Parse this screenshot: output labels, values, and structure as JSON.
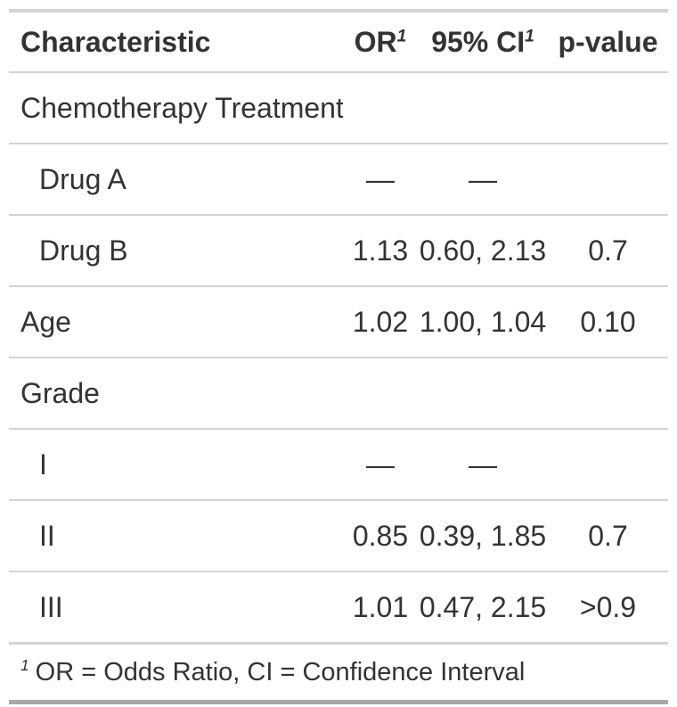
{
  "table": {
    "columns": [
      {
        "label": "Characteristic",
        "sup": ""
      },
      {
        "label": "OR",
        "sup": "1"
      },
      {
        "label": "95% CI",
        "sup": "1"
      },
      {
        "label": "p-value",
        "sup": ""
      }
    ],
    "rows": [
      {
        "label": "Chemotherapy Treatment",
        "or": "",
        "ci": "",
        "p": ""
      },
      {
        "label": "Drug A",
        "or": "—",
        "ci": "—",
        "p": ""
      },
      {
        "label": "Drug B",
        "or": "1.13",
        "ci": "0.60, 2.13",
        "p": "0.7"
      },
      {
        "label": "Age",
        "or": "1.02",
        "ci": "1.00, 1.04",
        "p": "0.10"
      },
      {
        "label": "Grade",
        "or": "",
        "ci": "",
        "p": ""
      },
      {
        "label": "I",
        "or": "—",
        "ci": "—",
        "p": ""
      },
      {
        "label": "II",
        "or": "0.85",
        "ci": "0.39, 1.85",
        "p": "0.7"
      },
      {
        "label": "III",
        "or": "1.01",
        "ci": "0.47, 2.15",
        "p": ">0.9"
      }
    ],
    "footnote": {
      "marker": "1",
      "text": "OR = Odds Ratio, CI = Confidence Interval"
    }
  },
  "colors": {
    "text": "#333333",
    "border_light": "#d3d3d3",
    "border_dark": "#a8a8a8",
    "background": "#ffffff"
  },
  "chart_data": {
    "type": "table",
    "title": "",
    "columns": [
      "Characteristic",
      "OR",
      "95% CI",
      "p-value"
    ],
    "rows": [
      [
        "Chemotherapy Treatment",
        "",
        "",
        ""
      ],
      [
        "Drug A",
        "—",
        "—",
        ""
      ],
      [
        "Drug B",
        "1.13",
        "0.60, 2.13",
        "0.7"
      ],
      [
        "Age",
        "1.02",
        "1.00, 1.04",
        "0.10"
      ],
      [
        "Grade",
        "",
        "",
        ""
      ],
      [
        "I",
        "—",
        "—",
        ""
      ],
      [
        "II",
        "0.85",
        "0.39, 1.85",
        "0.7"
      ],
      [
        "III",
        "1.01",
        "0.47, 2.15",
        ">0.9"
      ]
    ],
    "footnote": "1 OR = Odds Ratio, CI = Confidence Interval",
    "layout_hints": {
      "indented_rows": [
        1,
        2,
        5,
        6,
        7
      ],
      "group_rows": [
        0,
        4
      ],
      "value_alignment": "center",
      "label_alignment": "left"
    }
  }
}
